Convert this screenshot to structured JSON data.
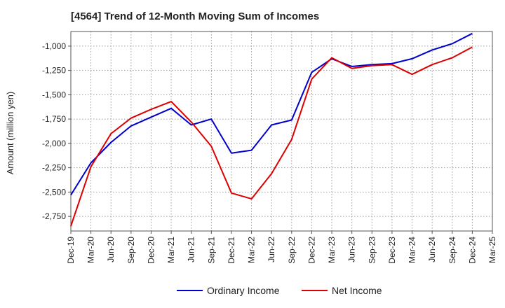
{
  "chart_data": {
    "type": "line",
    "title": "[4564]  Trend of 12-Month Moving Sum of Incomes",
    "xlabel": "",
    "ylabel": "Amount (million yen)",
    "ylim": [
      -2900,
      -850
    ],
    "yticks": [
      -1000,
      -1250,
      -1500,
      -1750,
      -2000,
      -2250,
      -2500,
      -2750
    ],
    "ytick_labels": [
      "-1,000",
      "-1,250",
      "-1,500",
      "-1,750",
      "-2,000",
      "-2,250",
      "-2,500",
      "-2,750"
    ],
    "categories": [
      "Dec-19",
      "Mar-20",
      "Jun-20",
      "Sep-20",
      "Dec-20",
      "Mar-21",
      "Jun-21",
      "Sep-21",
      "Dec-21",
      "Mar-22",
      "Jun-22",
      "Sep-22",
      "Dec-22",
      "Mar-23",
      "Jun-23",
      "Sep-23",
      "Dec-23",
      "Mar-24",
      "Jun-24",
      "Sep-24",
      "Dec-24",
      "Mar-25"
    ],
    "grid": true,
    "legend_position": "bottom",
    "series": [
      {
        "name": "Ordinary Income",
        "color": "#0000cc",
        "values": [
          -2530,
          -2200,
          -1990,
          -1820,
          -1730,
          -1640,
          -1810,
          -1750,
          -2100,
          -2070,
          -1810,
          -1760,
          -1270,
          -1130,
          -1210,
          -1190,
          -1180,
          -1130,
          -1040,
          -975,
          -870,
          null
        ]
      },
      {
        "name": "Net Income",
        "color": "#dd0000",
        "values": [
          -2850,
          -2240,
          -1900,
          -1740,
          -1650,
          -1570,
          -1780,
          -2030,
          -2510,
          -2570,
          -2310,
          -1960,
          -1340,
          -1120,
          -1230,
          -1200,
          -1190,
          -1290,
          -1190,
          -1120,
          -1010,
          null
        ]
      }
    ]
  }
}
